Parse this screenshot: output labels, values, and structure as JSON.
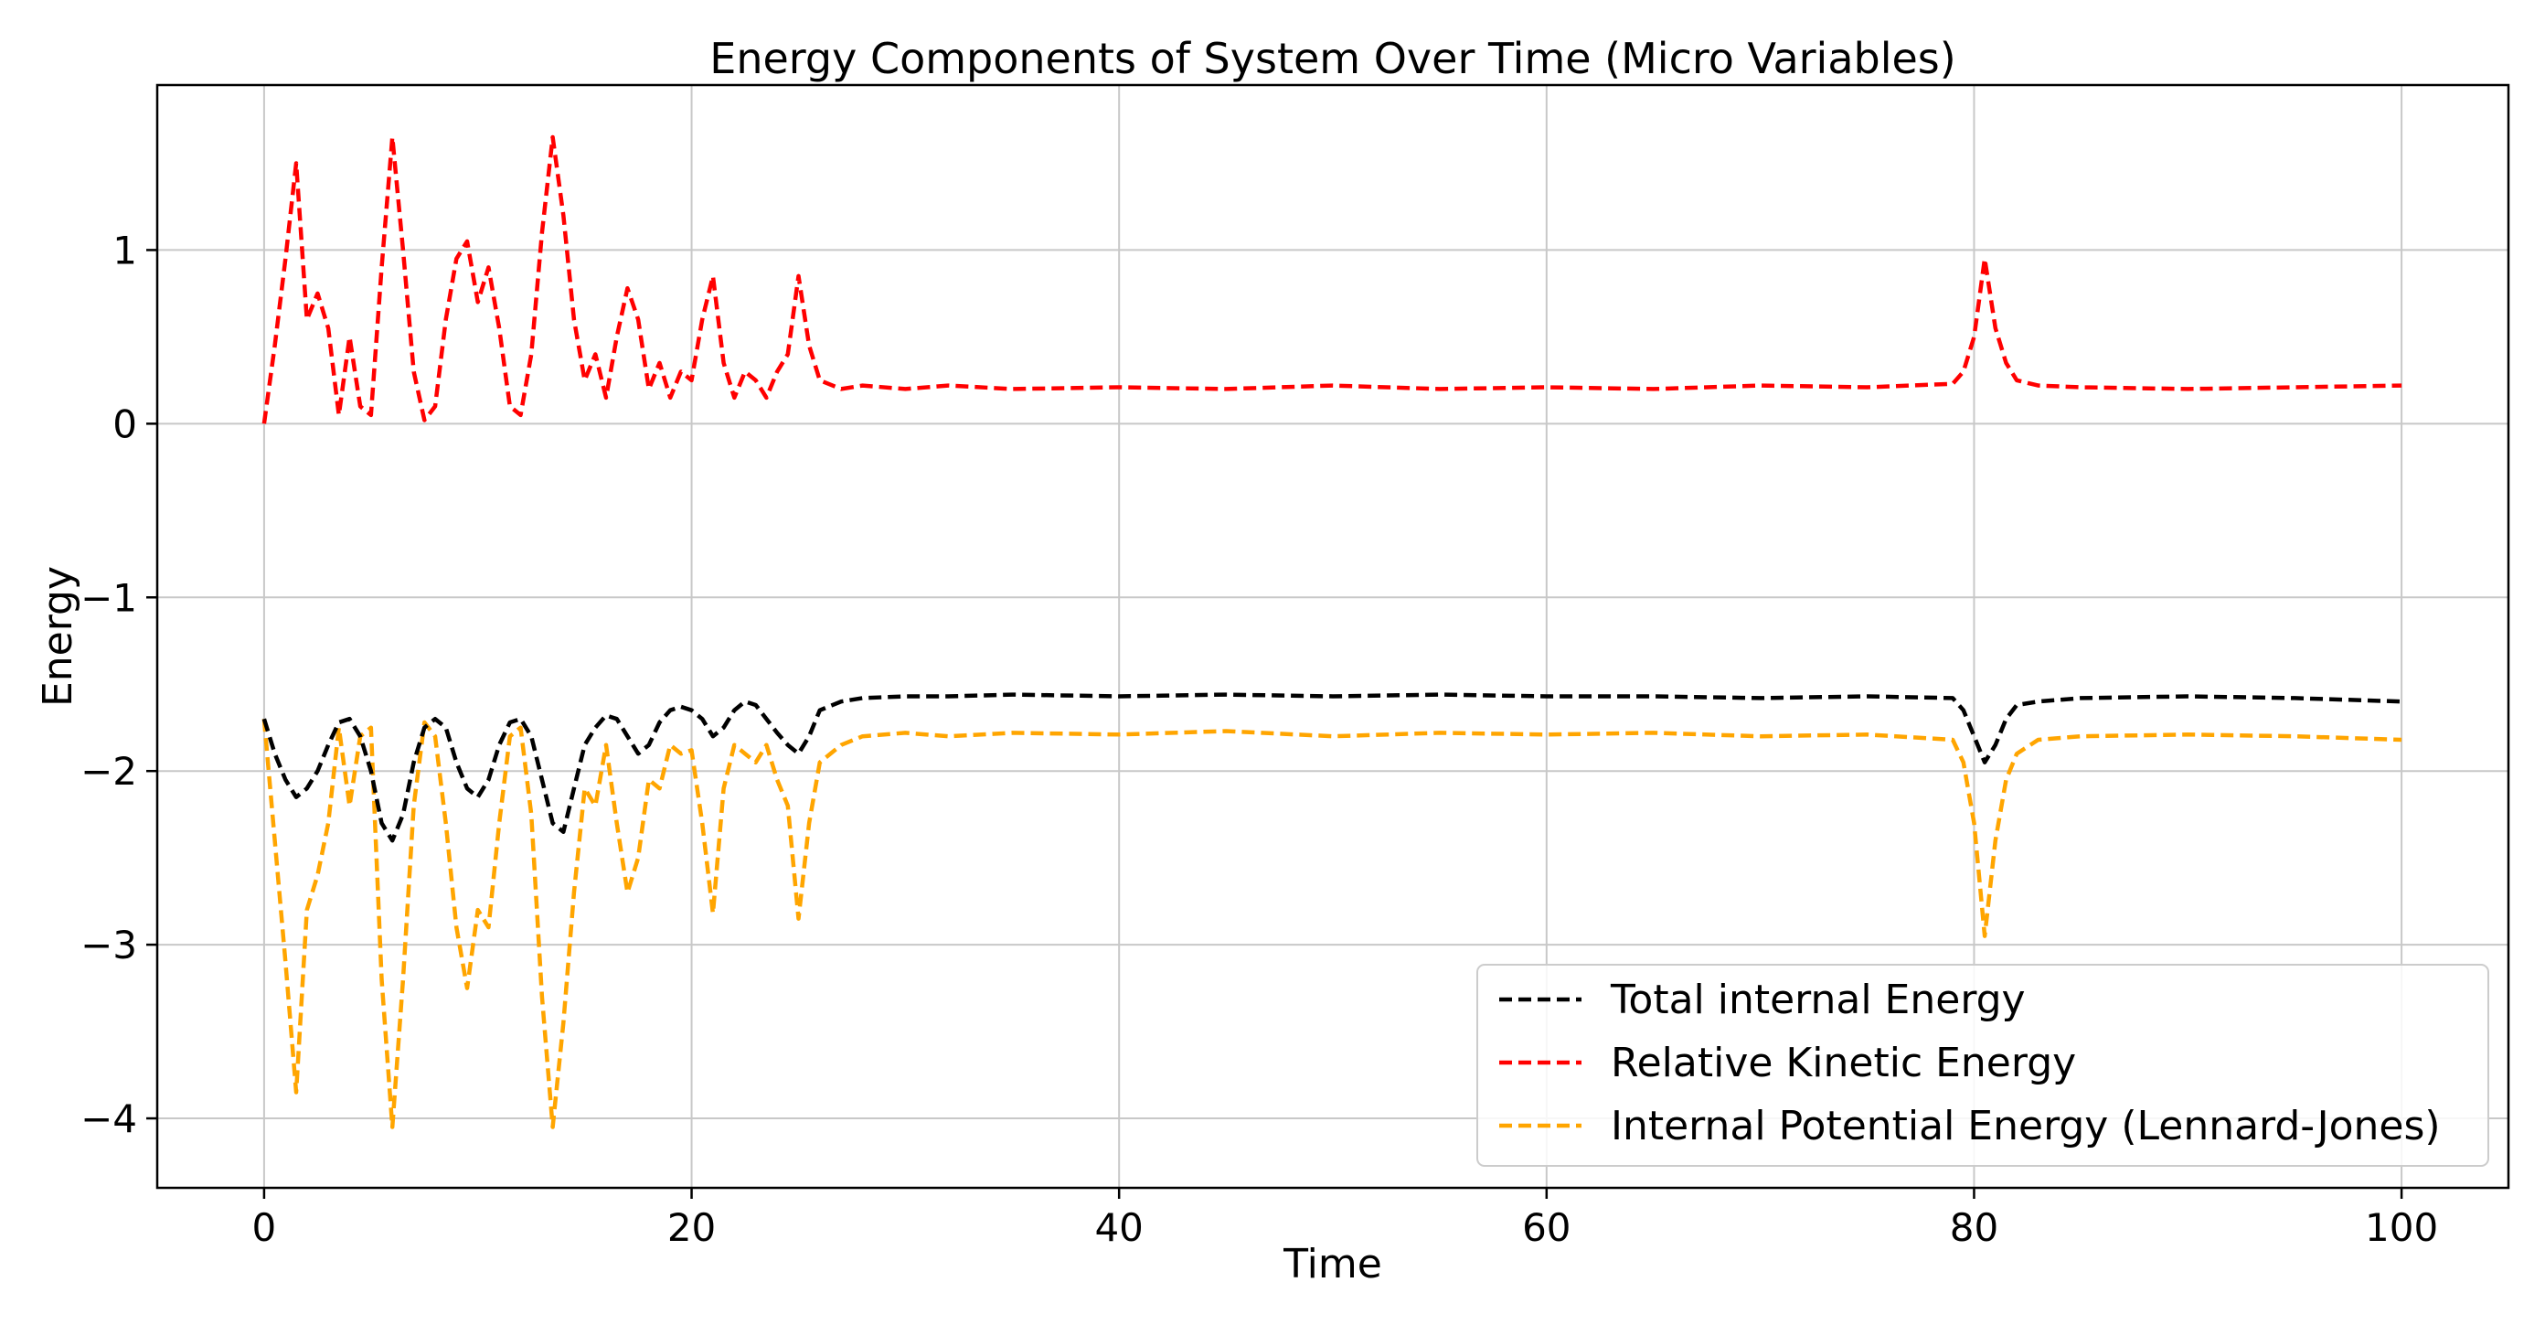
{
  "chart_data": {
    "type": "line",
    "title": "Energy Components of System Over Time (Micro Variables)",
    "xlabel": "Time",
    "ylabel": "Energy",
    "xlim": [
      -5,
      105
    ],
    "ylim": [
      -4.4,
      1.95
    ],
    "xticks": [
      0,
      20,
      40,
      60,
      80,
      100
    ],
    "yticks": [
      -4,
      -3,
      -2,
      -1,
      0,
      1
    ],
    "xtick_labels": [
      "0",
      "20",
      "40",
      "60",
      "80",
      "100"
    ],
    "ytick_labels": [
      "−4",
      "−3",
      "−2",
      "−1",
      "0",
      "1"
    ],
    "grid": true,
    "legend_position": "lower-right",
    "series": [
      {
        "name": "Total internal Energy",
        "color": "#000000",
        "x": [
          0,
          0.5,
          1,
          1.5,
          2,
          2.5,
          3,
          3.5,
          4,
          4.5,
          5,
          5.5,
          6,
          6.5,
          7,
          7.5,
          8,
          8.5,
          9,
          9.5,
          10,
          10.5,
          11,
          11.5,
          12,
          12.5,
          13,
          13.5,
          14,
          14.5,
          15,
          15.5,
          16,
          16.5,
          17,
          17.5,
          18,
          18.5,
          19,
          19.5,
          20,
          20.5,
          21,
          21.5,
          22,
          22.5,
          23,
          23.5,
          24,
          24.5,
          25,
          25.5,
          26,
          27,
          28,
          30,
          32,
          35,
          40,
          45,
          50,
          55,
          60,
          65,
          70,
          75,
          79,
          79.5,
          80,
          80.5,
          81,
          81.5,
          82,
          83,
          85,
          90,
          95,
          100
        ],
        "values": [
          -1.7,
          -1.9,
          -2.05,
          -2.15,
          -2.1,
          -2.0,
          -1.85,
          -1.72,
          -1.7,
          -1.8,
          -2.0,
          -2.3,
          -2.4,
          -2.25,
          -1.95,
          -1.75,
          -1.7,
          -1.75,
          -1.95,
          -2.1,
          -2.15,
          -2.05,
          -1.85,
          -1.72,
          -1.7,
          -1.8,
          -2.05,
          -2.3,
          -2.35,
          -2.1,
          -1.85,
          -1.75,
          -1.68,
          -1.7,
          -1.8,
          -1.9,
          -1.85,
          -1.72,
          -1.65,
          -1.63,
          -1.65,
          -1.7,
          -1.8,
          -1.75,
          -1.65,
          -1.6,
          -1.62,
          -1.7,
          -1.78,
          -1.85,
          -1.9,
          -1.8,
          -1.65,
          -1.6,
          -1.58,
          -1.57,
          -1.57,
          -1.56,
          -1.57,
          -1.56,
          -1.57,
          -1.56,
          -1.57,
          -1.57,
          -1.58,
          -1.57,
          -1.58,
          -1.65,
          -1.8,
          -1.95,
          -1.85,
          -1.7,
          -1.62,
          -1.6,
          -1.58,
          -1.57,
          -1.58,
          -1.6
        ]
      },
      {
        "name": "Relative Kinetic Energy",
        "color": "#ff0000",
        "x": [
          0,
          0.5,
          1,
          1.5,
          2,
          2.5,
          3,
          3.5,
          4,
          4.5,
          5,
          5.5,
          6,
          6.5,
          7,
          7.5,
          8,
          8.5,
          9,
          9.5,
          10,
          10.5,
          11,
          11.5,
          12,
          12.5,
          13,
          13.5,
          14,
          14.5,
          15,
          15.5,
          16,
          16.5,
          17,
          17.5,
          18,
          18.5,
          19,
          19.5,
          20,
          20.5,
          21,
          21.5,
          22,
          22.5,
          23,
          23.5,
          24,
          24.5,
          25,
          25.5,
          26,
          27,
          28,
          30,
          32,
          35,
          40,
          45,
          50,
          55,
          60,
          65,
          70,
          75,
          79,
          79.5,
          80,
          80.5,
          81,
          81.5,
          82,
          83,
          85,
          90,
          95,
          100
        ],
        "values": [
          0.0,
          0.45,
          0.95,
          1.5,
          0.6,
          0.75,
          0.55,
          0.05,
          0.5,
          0.1,
          0.05,
          0.9,
          1.65,
          1.0,
          0.3,
          0.02,
          0.1,
          0.6,
          0.95,
          1.05,
          0.7,
          0.9,
          0.55,
          0.1,
          0.05,
          0.4,
          1.1,
          1.65,
          1.2,
          0.6,
          0.25,
          0.4,
          0.15,
          0.5,
          0.78,
          0.6,
          0.2,
          0.35,
          0.15,
          0.3,
          0.25,
          0.6,
          0.85,
          0.35,
          0.15,
          0.3,
          0.25,
          0.15,
          0.3,
          0.4,
          0.85,
          0.45,
          0.25,
          0.2,
          0.22,
          0.2,
          0.22,
          0.2,
          0.21,
          0.2,
          0.22,
          0.2,
          0.21,
          0.2,
          0.22,
          0.21,
          0.23,
          0.3,
          0.5,
          0.95,
          0.55,
          0.35,
          0.25,
          0.22,
          0.21,
          0.2,
          0.21,
          0.22
        ]
      },
      {
        "name": "Internal Potential Energy (Lennard-Jones)",
        "color": "#ffa500",
        "x": [
          0,
          0.5,
          1,
          1.5,
          2,
          2.5,
          3,
          3.5,
          4,
          4.5,
          5,
          5.5,
          6,
          6.5,
          7,
          7.5,
          8,
          8.5,
          9,
          9.5,
          10,
          10.5,
          11,
          11.5,
          12,
          12.5,
          13,
          13.5,
          14,
          14.5,
          15,
          15.5,
          16,
          16.5,
          17,
          17.5,
          18,
          18.5,
          19,
          19.5,
          20,
          20.5,
          21,
          21.5,
          22,
          22.5,
          23,
          23.5,
          24,
          24.5,
          25,
          25.5,
          26,
          27,
          28,
          30,
          32,
          35,
          40,
          45,
          50,
          55,
          60,
          65,
          70,
          75,
          79,
          79.5,
          80,
          80.5,
          81,
          81.5,
          82,
          83,
          85,
          90,
          95,
          100
        ],
        "values": [
          -1.7,
          -2.4,
          -3.1,
          -3.85,
          -2.8,
          -2.6,
          -2.3,
          -1.75,
          -2.2,
          -1.8,
          -1.75,
          -3.2,
          -4.05,
          -3.2,
          -2.2,
          -1.72,
          -1.8,
          -2.3,
          -2.9,
          -3.25,
          -2.8,
          -2.9,
          -2.3,
          -1.8,
          -1.75,
          -2.25,
          -3.3,
          -4.05,
          -3.45,
          -2.7,
          -2.1,
          -2.2,
          -1.85,
          -2.3,
          -2.7,
          -2.5,
          -2.05,
          -2.1,
          -1.85,
          -1.9,
          -1.88,
          -2.3,
          -2.82,
          -2.1,
          -1.85,
          -1.9,
          -1.95,
          -1.85,
          -2.05,
          -2.2,
          -2.85,
          -2.3,
          -1.95,
          -1.85,
          -1.8,
          -1.78,
          -1.8,
          -1.78,
          -1.79,
          -1.77,
          -1.8,
          -1.78,
          -1.79,
          -1.78,
          -1.8,
          -1.79,
          -1.82,
          -1.95,
          -2.3,
          -2.95,
          -2.4,
          -2.05,
          -1.9,
          -1.82,
          -1.8,
          -1.79,
          -1.8,
          -1.82
        ]
      }
    ]
  }
}
